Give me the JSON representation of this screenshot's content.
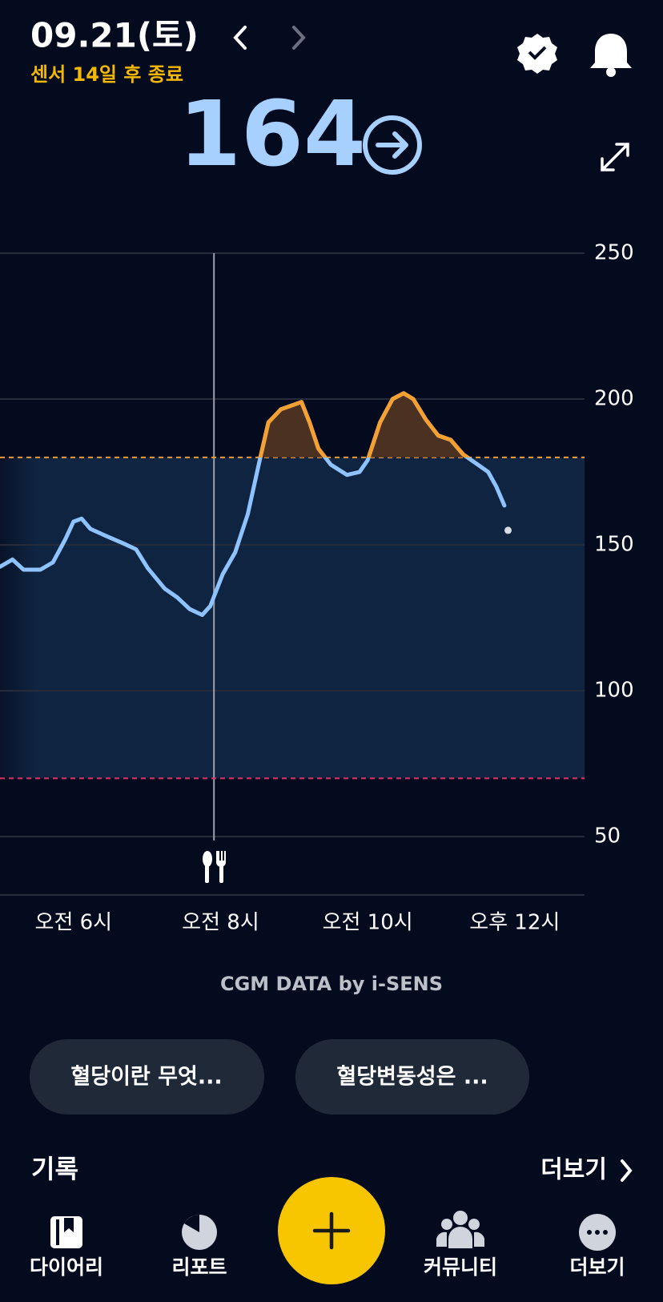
{
  "header": {
    "date": "09.21(토)",
    "sensor_status": "센서 14일 후 종료",
    "current_glucose": 164
  },
  "chart_data": {
    "type": "line",
    "x": [
      5.0,
      5.17,
      5.32,
      5.55,
      5.72,
      5.89,
      6.0,
      6.11,
      6.23,
      6.45,
      6.68,
      6.85,
      7.01,
      7.24,
      7.41,
      7.58,
      7.75,
      7.86,
      8.03,
      8.2,
      8.37,
      8.54,
      8.65,
      8.82,
      8.99,
      9.1,
      9.21,
      9.33,
      9.5,
      9.72,
      9.89,
      10.0,
      10.17,
      10.34,
      10.49,
      10.62,
      10.79,
      10.96,
      11.13,
      11.3,
      11.47,
      11.64,
      11.75,
      11.86
    ],
    "values": [
      142.5,
      145,
      141.5,
      141.5,
      144,
      152,
      158,
      159,
      155.5,
      153,
      150.5,
      148.5,
      142,
      135,
      132,
      128,
      126,
      129,
      140,
      147.5,
      160.5,
      180,
      192,
      196.5,
      198,
      199,
      192,
      183,
      177.5,
      174,
      175,
      179,
      192,
      200,
      202,
      200,
      193,
      187.5,
      186,
      181,
      178,
      175,
      170,
      163.5
    ],
    "color": "#8fc3ff",
    "high_color": "#f5a030",
    "high_fill": "#4a3122",
    "target_range": [
      70,
      180
    ],
    "range_colors": [
      "#e0306a",
      "#f5a030"
    ],
    "range_fill": "#0f2440",
    "xlim": [
      5,
      12.95
    ],
    "ylim": [
      30,
      250
    ],
    "yticks": [
      50,
      100,
      150,
      200,
      250
    ],
    "xticks": [
      {
        "value": 6,
        "label": "오전 6시"
      },
      {
        "value": 8,
        "label": "오전 8시"
      },
      {
        "value": 10,
        "label": "오전 10시"
      },
      {
        "value": 12,
        "label": "오후 12시"
      }
    ],
    "meal_time": 7.91,
    "latest": {
      "x": 11.91,
      "y": 155
    },
    "grid": true
  },
  "footer_note": "CGM DATA by i-SENS",
  "chips": [
    "혈당이란 무엇...",
    "혈당변동성은 ..."
  ],
  "records": {
    "title": "기록",
    "more": "더보기"
  },
  "nav": [
    "다이어리",
    "리포트",
    "커뮤니티",
    "더보기"
  ]
}
